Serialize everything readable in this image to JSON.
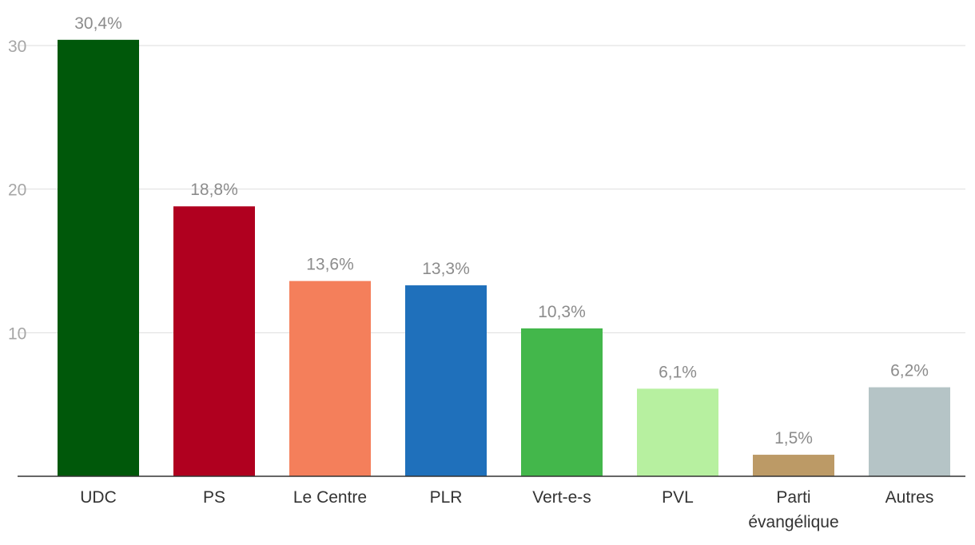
{
  "chart_data": {
    "type": "bar",
    "categories": [
      "UDC",
      "PS",
      "Le Centre",
      "PLR",
      "Vert-e-s",
      "PVL",
      "Parti évangélique",
      "Autres"
    ],
    "category_lines": [
      [
        "UDC"
      ],
      [
        "PS"
      ],
      [
        "Le Centre"
      ],
      [
        "PLR"
      ],
      [
        "Vert-e-s"
      ],
      [
        "PVL"
      ],
      [
        "Parti",
        "évangélique"
      ],
      [
        "Autres"
      ]
    ],
    "values": [
      30.4,
      18.8,
      13.6,
      13.3,
      10.3,
      6.1,
      1.5,
      6.2
    ],
    "value_labels": [
      "30,4%",
      "18,8%",
      "13,6%",
      "13,3%",
      "10,3%",
      "6,1%",
      "1,5%",
      "6,2%"
    ],
    "colors": [
      "#00580a",
      "#b0001f",
      "#f47f5b",
      "#1f70bb",
      "#43b74b",
      "#b7f0a0",
      "#bc9a66",
      "#b5c4c6"
    ],
    "yticks": [
      10,
      20,
      30
    ],
    "ytick_labels": [
      "10",
      "20",
      "30"
    ],
    "ylim": [
      0,
      30
    ],
    "grid": true,
    "title": "",
    "xlabel": "",
    "ylabel": ""
  }
}
